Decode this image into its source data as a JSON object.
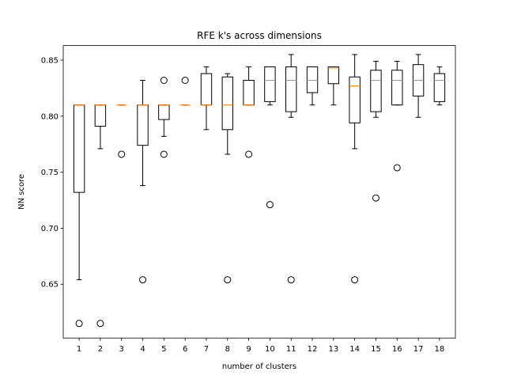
{
  "chart_data": {
    "type": "box",
    "title": "RFE k's across dimensions",
    "xlabel": "number of clusters",
    "ylabel": "NN score",
    "categories": [
      "1",
      "2",
      "3",
      "4",
      "5",
      "6",
      "7",
      "8",
      "9",
      "10",
      "11",
      "12",
      "13",
      "14",
      "15",
      "16",
      "17",
      "18"
    ],
    "ylim": [
      0.602,
      0.863
    ],
    "yticks": [
      "0.65",
      "0.70",
      "0.75",
      "0.80",
      "0.85"
    ],
    "grid": false,
    "boxes": [
      {
        "category": "1",
        "whisker_low": 0.654,
        "q1": 0.732,
        "median": 0.81,
        "q3": 0.81,
        "whisker_high": 0.81,
        "outliers": [
          0.615
        ]
      },
      {
        "category": "2",
        "whisker_low": 0.771,
        "q1": 0.791,
        "median": 0.81,
        "q3": 0.81,
        "whisker_high": 0.81,
        "outliers": [
          0.615
        ]
      },
      {
        "category": "3",
        "whisker_low": 0.81,
        "q1": 0.81,
        "median": 0.81,
        "q3": 0.81,
        "whisker_high": 0.81,
        "outliers": [
          0.766
        ]
      },
      {
        "category": "4",
        "whisker_low": 0.738,
        "q1": 0.774,
        "median": 0.81,
        "q3": 0.81,
        "whisker_high": 0.832,
        "outliers": [
          0.654
        ]
      },
      {
        "category": "5",
        "whisker_low": 0.782,
        "q1": 0.797,
        "median": 0.81,
        "q3": 0.81,
        "whisker_high": 0.81,
        "outliers": [
          0.832,
          0.766
        ]
      },
      {
        "category": "6",
        "whisker_low": 0.81,
        "q1": 0.81,
        "median": 0.81,
        "q3": 0.81,
        "whisker_high": 0.81,
        "outliers": [
          0.832
        ]
      },
      {
        "category": "7",
        "whisker_low": 0.788,
        "q1": 0.81,
        "median": 0.81,
        "q3": 0.838,
        "whisker_high": 0.844,
        "outliers": []
      },
      {
        "category": "8",
        "whisker_low": 0.766,
        "q1": 0.788,
        "median": 0.81,
        "q3": 0.835,
        "whisker_high": 0.838,
        "outliers": [
          0.654
        ]
      },
      {
        "category": "9",
        "whisker_low": 0.81,
        "q1": 0.81,
        "median": 0.81,
        "q3": 0.832,
        "whisker_high": 0.844,
        "outliers": [
          0.766
        ]
      },
      {
        "category": "10",
        "whisker_low": 0.81,
        "q1": 0.813,
        "median": 0.832,
        "q3": 0.844,
        "whisker_high": 0.844,
        "outliers": [
          0.721
        ]
      },
      {
        "category": "11",
        "whisker_low": 0.799,
        "q1": 0.804,
        "median": 0.832,
        "q3": 0.844,
        "whisker_high": 0.855,
        "outliers": [
          0.654
        ]
      },
      {
        "category": "12",
        "whisker_low": 0.81,
        "q1": 0.821,
        "median": 0.832,
        "q3": 0.844,
        "whisker_high": 0.844,
        "outliers": []
      },
      {
        "category": "13",
        "whisker_low": 0.81,
        "q1": 0.829,
        "median": 0.843,
        "q3": 0.844,
        "whisker_high": 0.844,
        "outliers": []
      },
      {
        "category": "14",
        "whisker_low": 0.771,
        "q1": 0.794,
        "median": 0.827,
        "q3": 0.835,
        "whisker_high": 0.855,
        "outliers": [
          0.654
        ]
      },
      {
        "category": "15",
        "whisker_low": 0.799,
        "q1": 0.804,
        "median": 0.832,
        "q3": 0.841,
        "whisker_high": 0.849,
        "outliers": [
          0.727
        ]
      },
      {
        "category": "16",
        "whisker_low": 0.81,
        "q1": 0.81,
        "median": 0.832,
        "q3": 0.841,
        "whisker_high": 0.849,
        "outliers": [
          0.754
        ]
      },
      {
        "category": "17",
        "whisker_low": 0.799,
        "q1": 0.818,
        "median": 0.832,
        "q3": 0.846,
        "whisker_high": 0.855,
        "outliers": []
      },
      {
        "category": "18",
        "whisker_low": 0.81,
        "q1": 0.813,
        "median": 0.832,
        "q3": 0.838,
        "whisker_high": 0.844,
        "outliers": []
      }
    ]
  },
  "colors": {
    "box": "#000000",
    "median": "#ff7f0e",
    "outlier": "#000000",
    "background": "#ffffff"
  }
}
